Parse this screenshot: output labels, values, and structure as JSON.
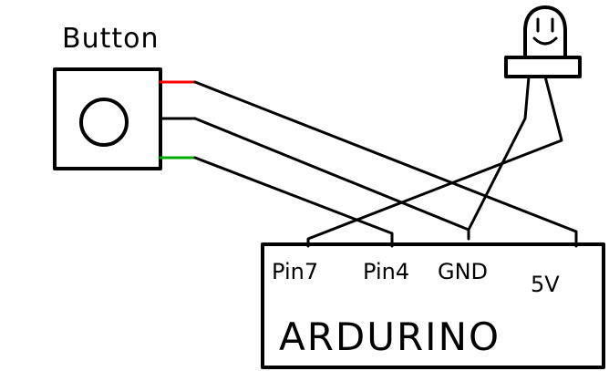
{
  "button": {
    "label": "Button",
    "lead_colors": {
      "top": "#ff0000",
      "middle": "#000000",
      "bottom": "#00aa00"
    }
  },
  "arduino": {
    "label": "ARDURINO",
    "pins": [
      {
        "id": "pin7",
        "label": "Pin7"
      },
      {
        "id": "pin4",
        "label": "Pin4"
      },
      {
        "id": "gnd",
        "label": "GND"
      },
      {
        "id": "5v",
        "label": "5V"
      }
    ]
  },
  "led": {
    "face_icon": "smiley-face-icon"
  },
  "colors": {
    "ink": "#000000",
    "background": "#ffffff"
  }
}
